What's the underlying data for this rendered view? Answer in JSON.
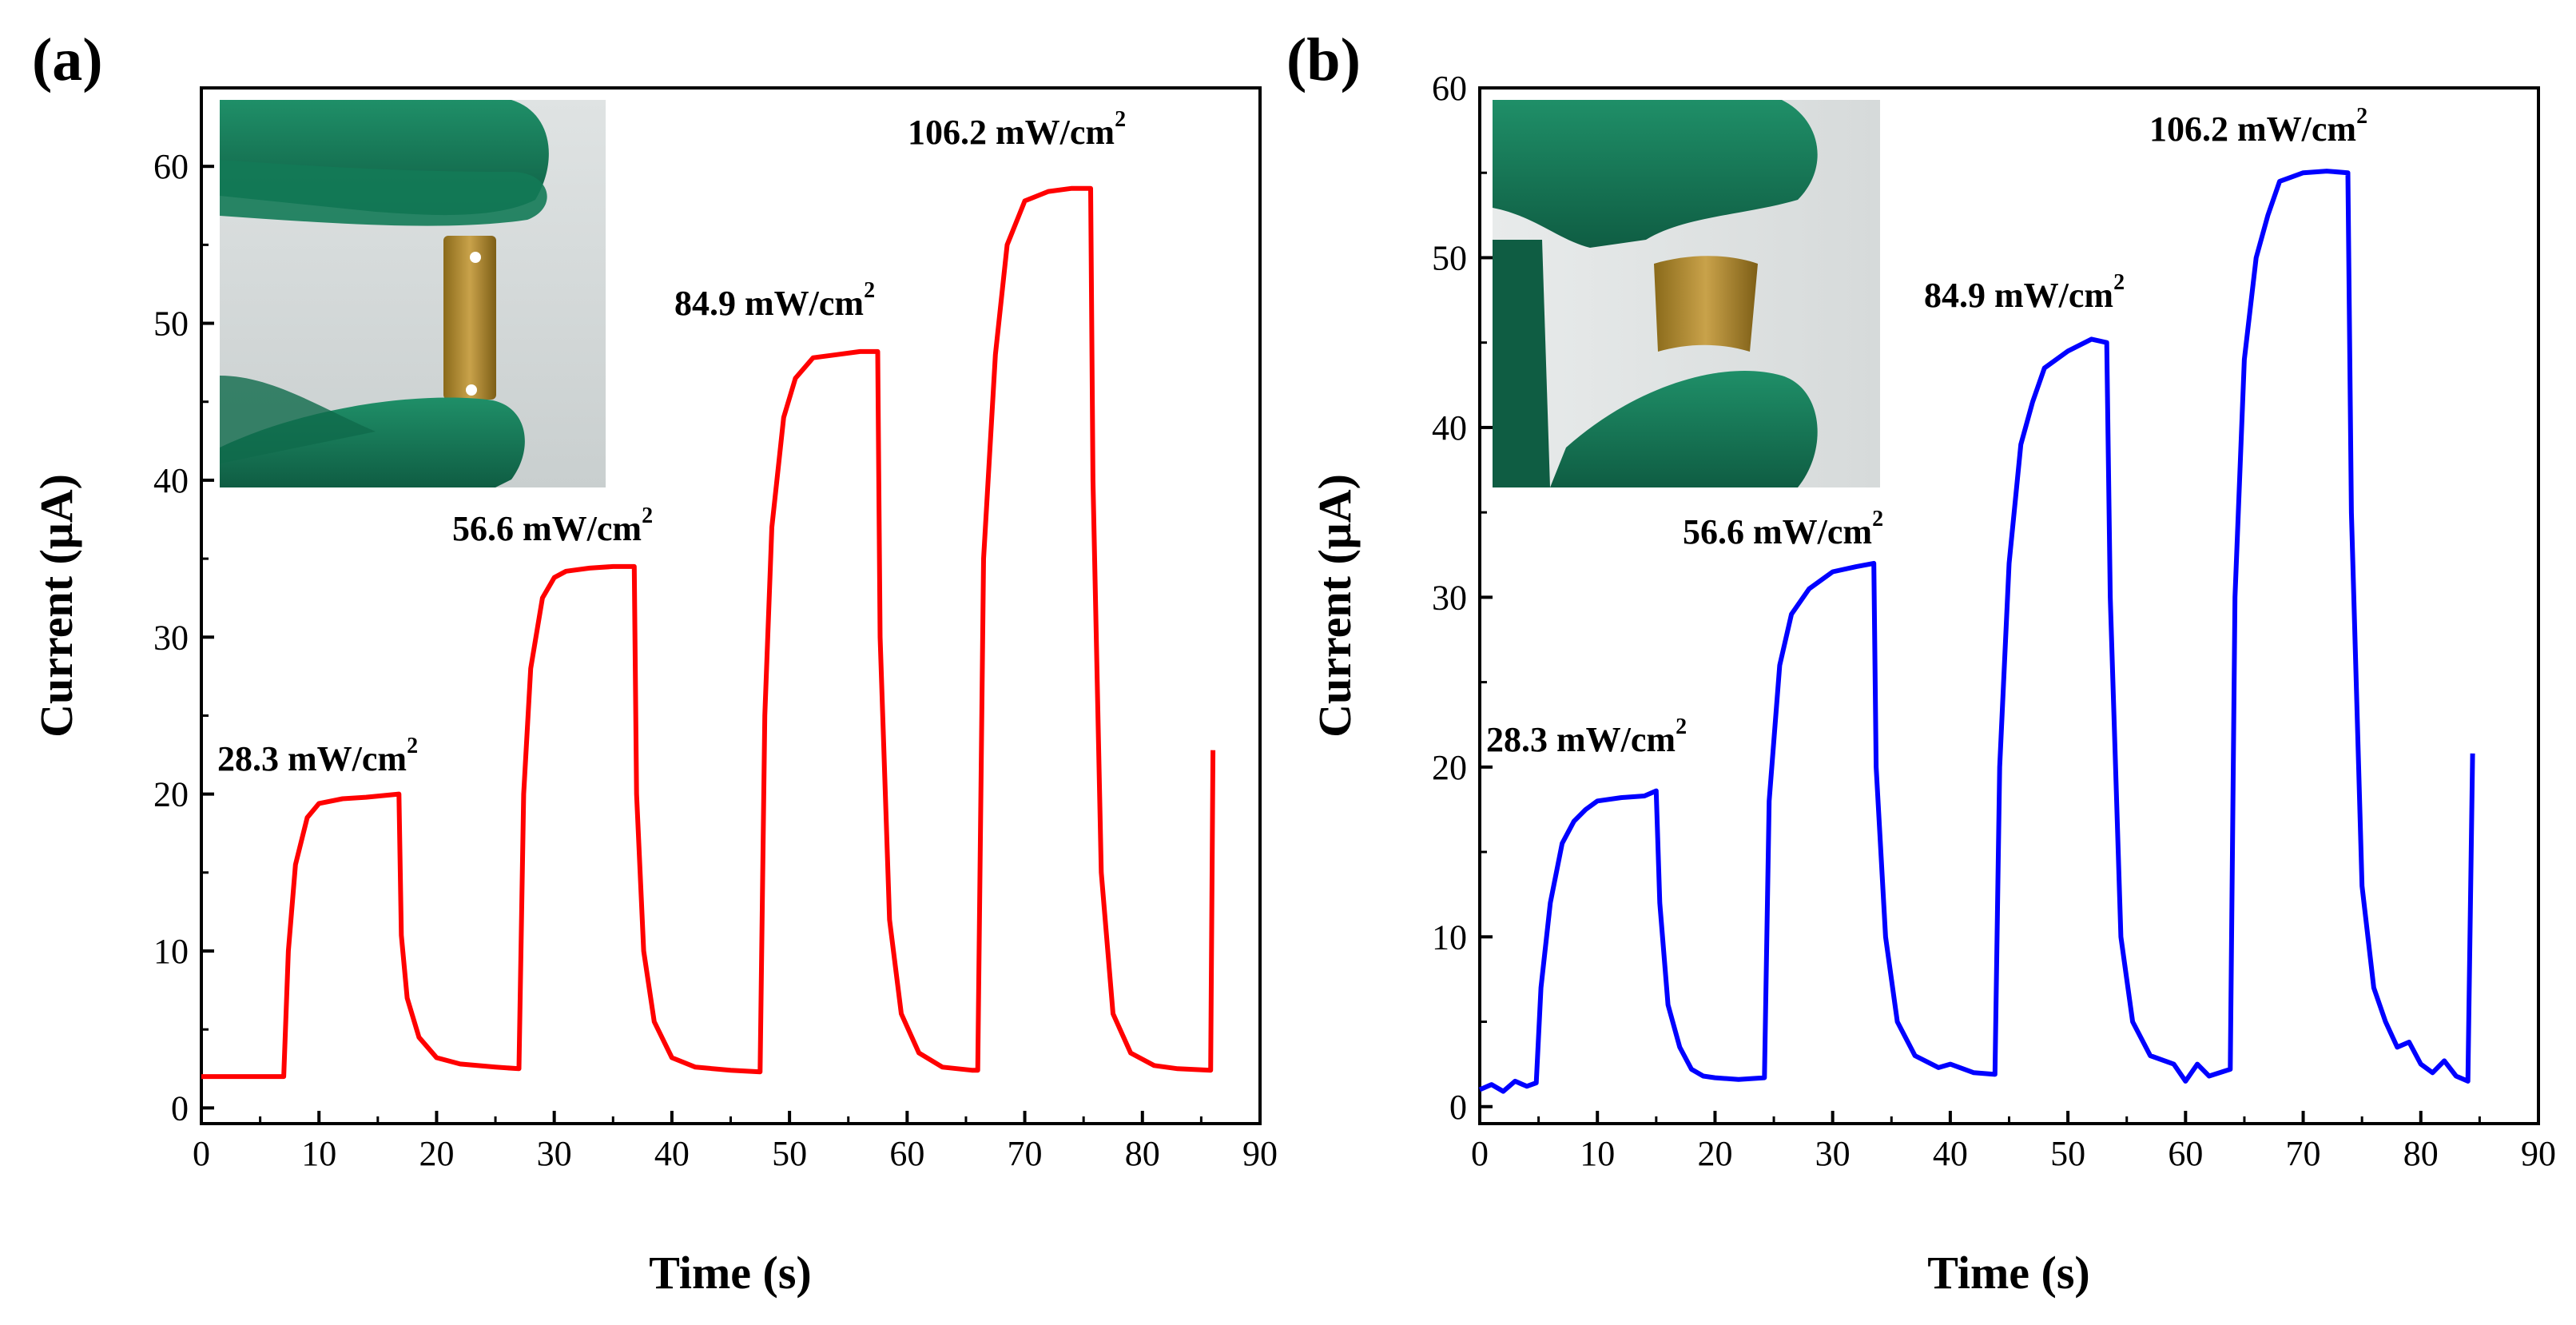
{
  "chart_data": [
    {
      "type": "line",
      "panel_label": "(a)",
      "xlabel": "Time (s)",
      "ylabel": "Current (μA)",
      "xlim": [
        0,
        90
      ],
      "ylim": [
        -1,
        65
      ],
      "xticks": [
        0,
        10,
        20,
        30,
        40,
        50,
        60,
        70,
        80,
        90
      ],
      "yticks": [
        0,
        10,
        20,
        30,
        40,
        50,
        60
      ],
      "grid": false,
      "color": "#ff0000",
      "series": [
        {
          "x": [
            0,
            7.0,
            7.4,
            8,
            9,
            10,
            12,
            14,
            16.8,
            17.0,
            17.5,
            18.5,
            20,
            22,
            25,
            27.0,
            27.4,
            28,
            29,
            30,
            31,
            33,
            35,
            36.8,
            37.0,
            37.6,
            38.5,
            40,
            42,
            45,
            47.5,
            47.9,
            48.5,
            49.5,
            50.5,
            52,
            54,
            56,
            57.5,
            57.7,
            58.5,
            59.5,
            61,
            63,
            65.5,
            66.0,
            66.5,
            67.5,
            68.5,
            70,
            72,
            74,
            75.6,
            75.8,
            76.5,
            77.5,
            79,
            81,
            83,
            85.8,
            86.0
          ],
          "y": [
            2.0,
            2.0,
            10,
            15.5,
            18.5,
            19.4,
            19.7,
            19.8,
            20.0,
            11,
            7,
            4.5,
            3.2,
            2.8,
            2.6,
            2.5,
            20,
            28,
            32.5,
            33.8,
            34.2,
            34.4,
            34.5,
            34.5,
            20,
            10,
            5.5,
            3.2,
            2.6,
            2.4,
            2.3,
            25,
            37,
            44,
            46.5,
            47.8,
            48.0,
            48.2,
            48.2,
            30,
            12,
            6,
            3.5,
            2.6,
            2.4,
            2.4,
            35,
            48,
            55,
            57.8,
            58.4,
            58.6,
            58.6,
            40,
            15,
            6,
            3.5,
            2.7,
            2.5,
            2.4,
            22.8
          ]
        }
      ],
      "annotations": [
        {
          "text": "28.3 mW/cm",
          "sup": "2"
        },
        {
          "text": "56.6 mW/cm",
          "sup": "2"
        },
        {
          "text": "84.9 mW/cm",
          "sup": "2"
        },
        {
          "text": "106.2 mW/cm",
          "sup": "2"
        }
      ],
      "inset": "photo of flat flexible gold-colored film strip held between green-gloved fingers"
    },
    {
      "type": "line",
      "panel_label": "(b)",
      "xlabel": "Time (s)",
      "ylabel": "Current (μA)",
      "xlim": [
        0,
        90
      ],
      "ylim": [
        -1,
        60
      ],
      "xticks": [
        0,
        10,
        20,
        30,
        40,
        50,
        60,
        70,
        80,
        90
      ],
      "yticks": [
        0,
        10,
        20,
        30,
        40,
        50,
        60
      ],
      "grid": false,
      "color": "#0000ff",
      "series": [
        {
          "x": [
            0,
            1,
            2,
            3,
            4,
            4.8,
            5.2,
            6,
            7,
            8,
            9,
            10,
            12,
            14,
            15.0,
            15.3,
            16,
            17,
            18,
            19,
            20,
            22,
            24.2,
            24.6,
            25.5,
            26.5,
            28,
            30,
            32,
            33.5,
            33.7,
            34.5,
            35.5,
            37,
            39,
            40,
            42,
            43.8,
            44.2,
            45,
            46,
            47,
            48,
            50,
            52,
            53.3,
            53.6,
            54.5,
            55.5,
            57,
            59,
            60,
            61,
            62,
            63.8,
            64.2,
            65,
            66,
            67,
            68,
            70,
            72,
            73.8,
            74.1,
            75,
            76,
            77,
            78,
            79,
            80,
            81,
            82,
            83,
            84.0,
            84.4
          ],
          "y": [
            1.0,
            1.3,
            0.9,
            1.5,
            1.2,
            1.4,
            7,
            12,
            15.5,
            16.8,
            17.5,
            18.0,
            18.2,
            18.3,
            18.6,
            12,
            6,
            3.5,
            2.2,
            1.8,
            1.7,
            1.6,
            1.7,
            18,
            26,
            29,
            30.5,
            31.5,
            31.8,
            32.0,
            20,
            10,
            5,
            3,
            2.3,
            2.5,
            2.0,
            1.9,
            20,
            32,
            39,
            41.5,
            43.5,
            44.5,
            45.2,
            45.0,
            30,
            10,
            5,
            3.0,
            2.5,
            1.5,
            2.5,
            1.8,
            2.2,
            30,
            44,
            50,
            52.5,
            54.5,
            55.0,
            55.1,
            55.0,
            35,
            13,
            7,
            5,
            3.5,
            3.8,
            2.5,
            2.0,
            2.7,
            1.8,
            1.5,
            20.8
          ]
        }
      ],
      "annotations": [
        {
          "text": "28.3 mW/cm",
          "sup": "2"
        },
        {
          "text": "56.6 mW/cm",
          "sup": "2"
        },
        {
          "text": "84.9 mW/cm",
          "sup": "2"
        },
        {
          "text": "106.2 mW/cm",
          "sup": "2"
        }
      ],
      "inset": "photo of bent flexible gold-colored film held between green-gloved fingers"
    }
  ]
}
